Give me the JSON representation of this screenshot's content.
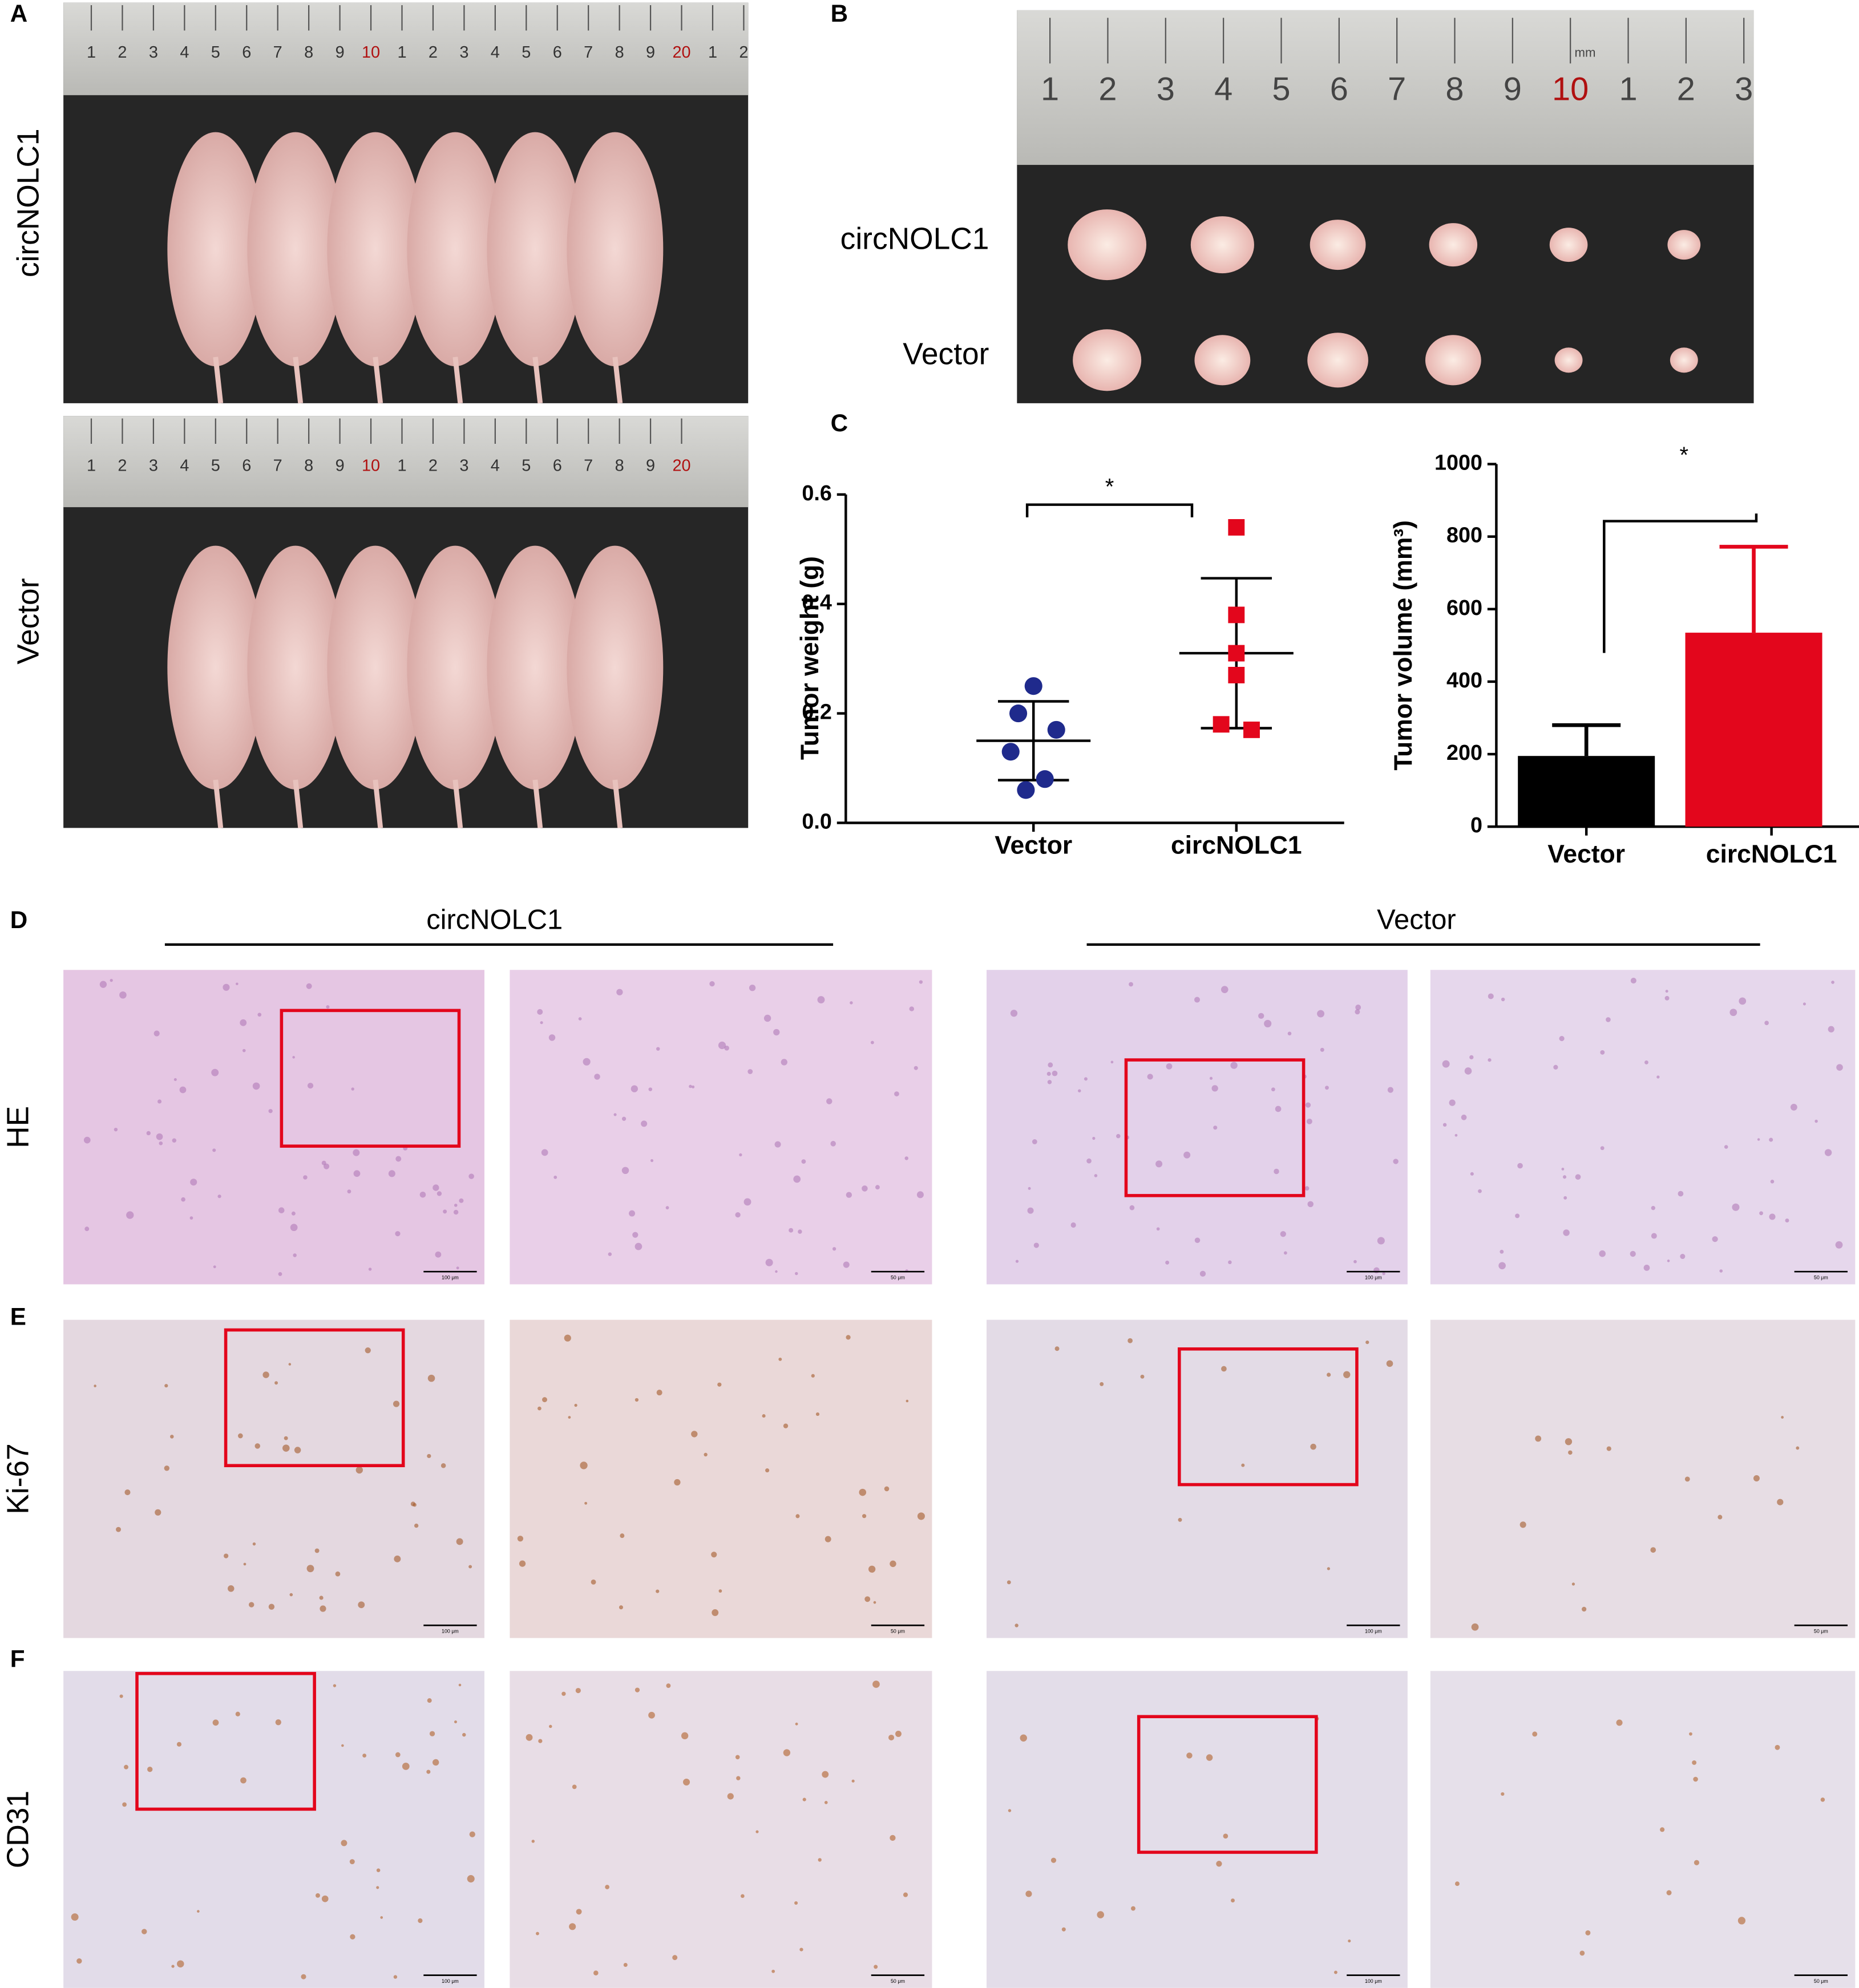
{
  "panel_labels": [
    "A",
    "B",
    "C",
    "D",
    "E",
    "F"
  ],
  "panel_a": {
    "groups": [
      "circNOLC1",
      "Vector"
    ],
    "ruler_top": [
      "1",
      "2",
      "3",
      "4",
      "5",
      "6",
      "7",
      "8",
      "9",
      "10",
      "1",
      "2",
      "3",
      "4",
      "5",
      "6",
      "7",
      "8",
      "9",
      "20",
      "1",
      "2"
    ],
    "ruler_bottom": [
      "1",
      "2",
      "3",
      "4",
      "5",
      "6",
      "7",
      "8",
      "9",
      "10",
      "1",
      "2",
      "3",
      "4",
      "5",
      "6",
      "7",
      "8",
      "9",
      "20"
    ]
  },
  "panel_b": {
    "groups": [
      "circNOLC1",
      "Vector"
    ],
    "ruler": [
      "1",
      "2",
      "3",
      "4",
      "5",
      "6",
      "7",
      "8",
      "9",
      "10",
      "1",
      "2",
      "3"
    ],
    "ruler_unit": "mm"
  },
  "chart_data": [
    {
      "type": "scatter",
      "ylabel": "Tumor weight (g)",
      "categories": [
        "Vector",
        "circNOLC1"
      ],
      "colors": [
        "#1f2a8c",
        "#e3061c"
      ],
      "values": [
        [
          0.25,
          0.2,
          0.17,
          0.13,
          0.08,
          0.06
        ],
        [
          0.54,
          0.38,
          0.31,
          0.27,
          0.18,
          0.17
        ]
      ],
      "mean": [
        0.15,
        0.31
      ],
      "sd": [
        0.072,
        0.137
      ],
      "ylim": [
        0,
        0.6
      ],
      "yticks": [
        {
          "value": 0,
          "label": "0.0"
        },
        0.2,
        0.4,
        0.6
      ],
      "annotation": "*"
    },
    {
      "type": "bar",
      "ylabel": "Tumor volume (mm³)",
      "categories": [
        "Vector",
        "circNOLC1"
      ],
      "colors": [
        "#000000",
        "#e3061c"
      ],
      "values": [
        195,
        535
      ],
      "errors": [
        85,
        237
      ],
      "ylim": [
        0,
        1000
      ],
      "yticks": [
        0,
        200,
        400,
        600,
        800,
        1000
      ],
      "annotation": "*"
    }
  ],
  "histology": {
    "groups": [
      "circNOLC1",
      "Vector"
    ],
    "stains": [
      "HE",
      "Ki-67",
      "CD31"
    ],
    "scale_bars": [
      "100 μm",
      "50 μm"
    ]
  }
}
